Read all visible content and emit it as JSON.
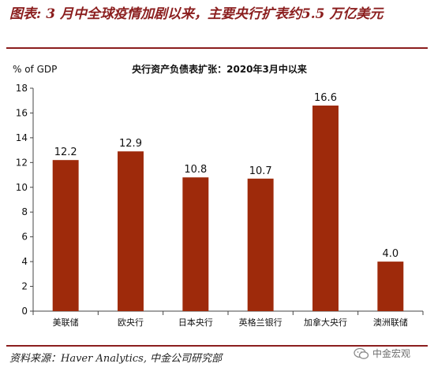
{
  "header": {
    "title": "图表: 3 月中全球疫情加剧以来，主要央行扩表约5.5 万亿美元"
  },
  "footer": {
    "source": "资料来源：Haver Analytics, 中金公司研究部",
    "watermark": "中金宏观",
    "watermark_icon": "wechat-icon"
  },
  "colors": {
    "accent": "#8b1e1e",
    "bar": "#9e2a0b"
  },
  "chart_data": {
    "type": "bar",
    "title": "央行资产负债表扩张：2020年3月中以来",
    "ylabel": "% of GDP",
    "xlabel": "",
    "categories": [
      "美联储",
      "欧央行",
      "日本央行",
      "英格兰银行",
      "加拿大央行",
      "澳洲联储"
    ],
    "values": [
      12.2,
      12.9,
      10.8,
      10.7,
      16.6,
      4.0
    ],
    "data_labels": [
      "12.2",
      "12.9",
      "10.8",
      "10.7",
      "16.6",
      "4.0"
    ],
    "ylim": [
      0,
      18
    ],
    "yticks": [
      0,
      2,
      4,
      6,
      8,
      10,
      12,
      14,
      16,
      18
    ],
    "grid": false,
    "legend": "none"
  }
}
